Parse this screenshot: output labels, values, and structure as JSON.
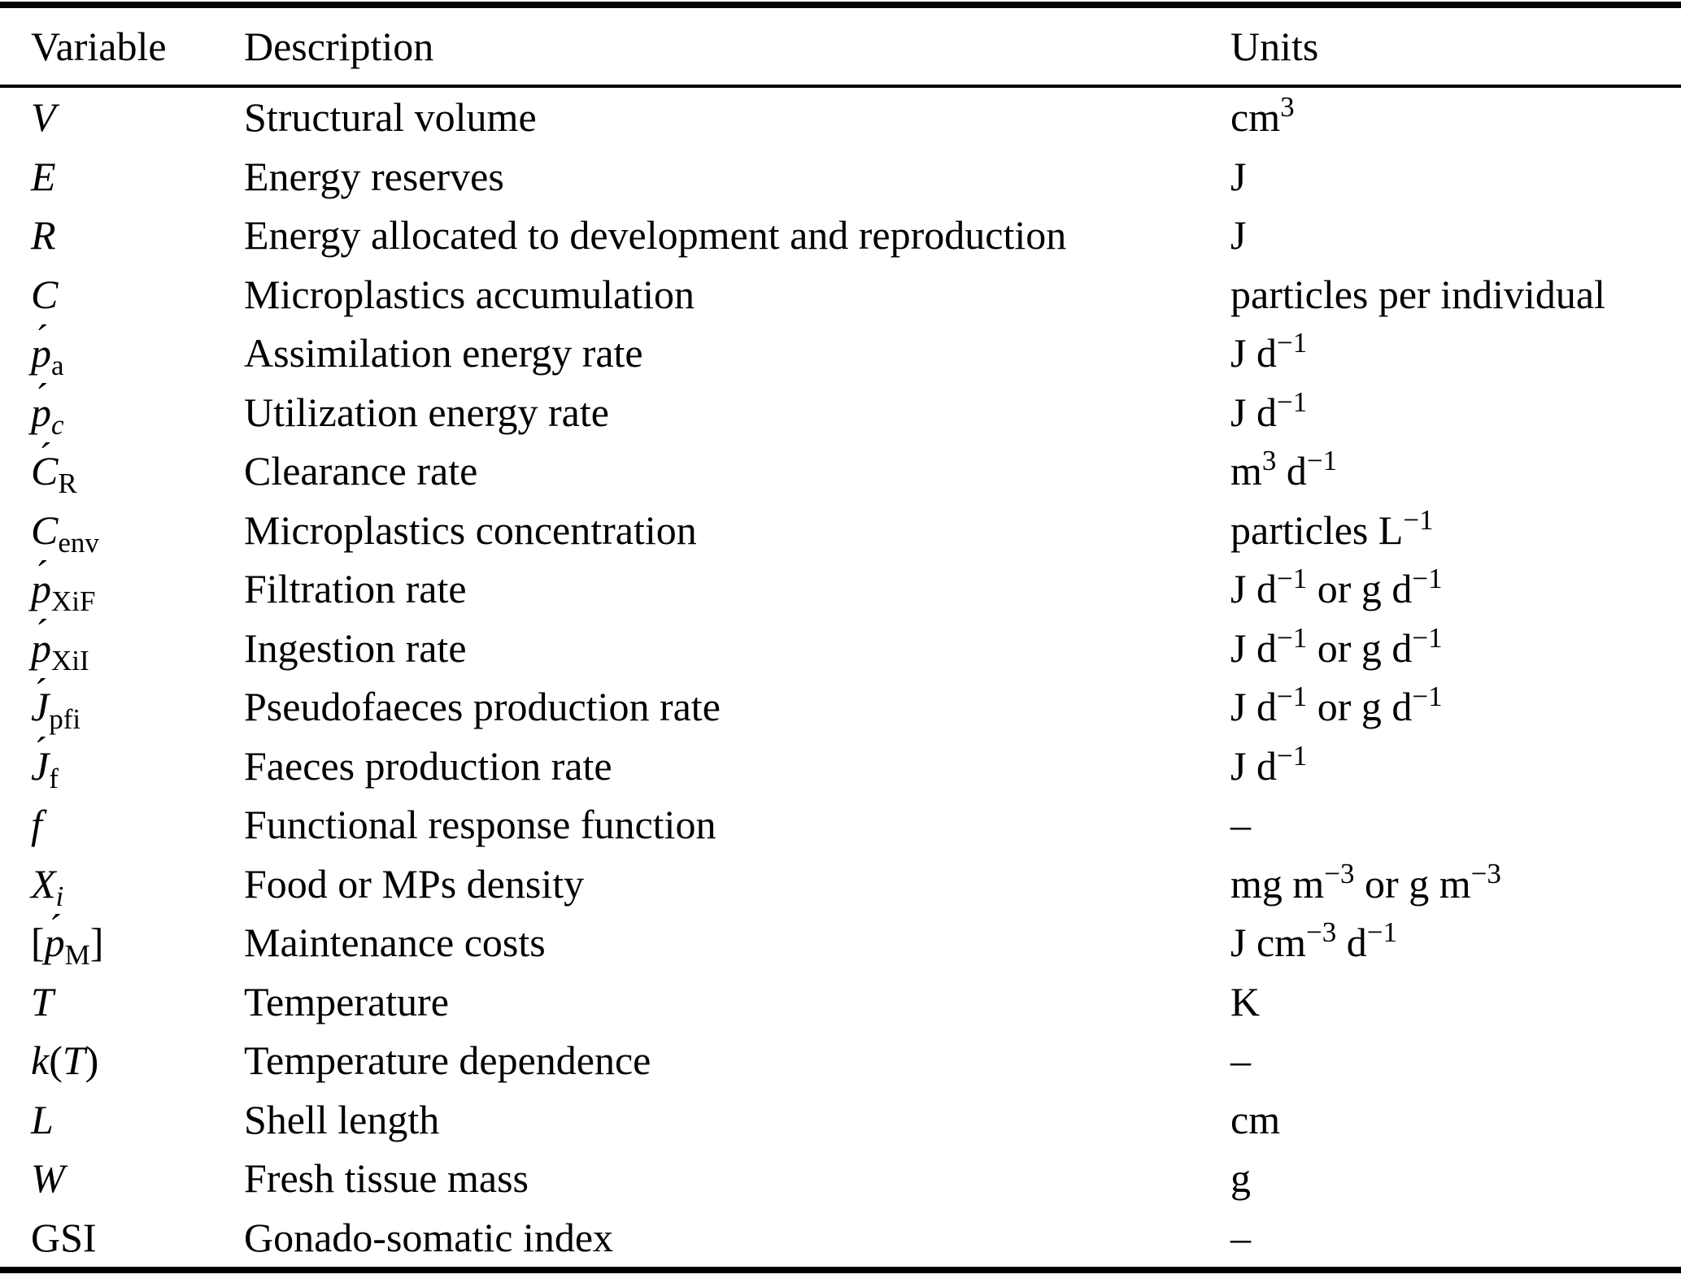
{
  "table": {
    "headers": {
      "variable": "Variable",
      "description": "Description",
      "units": "Units"
    },
    "rows": [
      {
        "variable": [
          {
            "t": "V",
            "i": true
          }
        ],
        "description": "Structural volume",
        "units": [
          {
            "t": "cm"
          },
          {
            "t": "3",
            "sup": true
          }
        ]
      },
      {
        "variable": [
          {
            "t": "E",
            "i": true
          }
        ],
        "description": "Energy reserves",
        "units": [
          {
            "t": "J"
          }
        ]
      },
      {
        "variable": [
          {
            "t": "R",
            "i": true
          }
        ],
        "description": "Energy allocated to development and reproduction",
        "units": [
          {
            "t": "J"
          }
        ]
      },
      {
        "variable": [
          {
            "t": "C",
            "i": true
          }
        ],
        "description": "Microplastics accumulation",
        "units": [
          {
            "t": "particles per individual"
          }
        ]
      },
      {
        "variable": [
          {
            "t": "p",
            "i": true,
            "ac": true
          },
          {
            "t": "a",
            "sub": true
          }
        ],
        "description": "Assimilation energy rate",
        "units": [
          {
            "t": "J d"
          },
          {
            "t": "−1",
            "sup": true
          }
        ]
      },
      {
        "variable": [
          {
            "t": "p",
            "i": true,
            "ac": true
          },
          {
            "t": "c",
            "sub": true,
            "i": true
          }
        ],
        "description": "Utilization energy rate",
        "units": [
          {
            "t": "J d"
          },
          {
            "t": "−1",
            "sup": true
          }
        ]
      },
      {
        "variable": [
          {
            "t": "C",
            "i": true,
            "ac": true
          },
          {
            "t": "R",
            "sub": true
          }
        ],
        "description": "Clearance rate",
        "units": [
          {
            "t": "m"
          },
          {
            "t": "3",
            "sup": true
          },
          {
            "t": " d"
          },
          {
            "t": "−1",
            "sup": true
          }
        ]
      },
      {
        "variable": [
          {
            "t": "C",
            "i": true
          },
          {
            "t": "env",
            "sub": true
          }
        ],
        "description": "Microplastics concentration",
        "units": [
          {
            "t": "particles L"
          },
          {
            "t": "−1",
            "sup": true
          }
        ]
      },
      {
        "variable": [
          {
            "t": "p",
            "i": true,
            "ac": true
          },
          {
            "t": "XiF",
            "sub": true
          }
        ],
        "description": "Filtration rate",
        "units": [
          {
            "t": "J d"
          },
          {
            "t": "−1",
            "sup": true
          },
          {
            "t": " or g d"
          },
          {
            "t": "−1",
            "sup": true
          }
        ]
      },
      {
        "variable": [
          {
            "t": "p",
            "i": true,
            "ac": true
          },
          {
            "t": "XiI",
            "sub": true
          }
        ],
        "description": "Ingestion rate",
        "units": [
          {
            "t": "J d"
          },
          {
            "t": "−1",
            "sup": true
          },
          {
            "t": " or g d"
          },
          {
            "t": "−1",
            "sup": true
          }
        ]
      },
      {
        "variable": [
          {
            "t": "J",
            "i": true,
            "ac": true
          },
          {
            "t": "pfi",
            "sub": true
          }
        ],
        "description": "Pseudofaeces production rate",
        "units": [
          {
            "t": "J d"
          },
          {
            "t": "−1",
            "sup": true
          },
          {
            "t": " or g d"
          },
          {
            "t": "−1",
            "sup": true
          }
        ]
      },
      {
        "variable": [
          {
            "t": "J",
            "i": true,
            "ac": true
          },
          {
            "t": "f",
            "sub": true
          }
        ],
        "description": "Faeces production rate",
        "units": [
          {
            "t": "J d"
          },
          {
            "t": "−1",
            "sup": true
          }
        ]
      },
      {
        "variable": [
          {
            "t": "f",
            "i": true
          }
        ],
        "description": "Functional response function",
        "units": [
          {
            "t": "–"
          }
        ]
      },
      {
        "variable": [
          {
            "t": "X",
            "i": true
          },
          {
            "t": "i",
            "sub": true,
            "i": true
          }
        ],
        "description": "Food or MPs density",
        "units": [
          {
            "t": "mg m"
          },
          {
            "t": "−3",
            "sup": true
          },
          {
            "t": " or g m"
          },
          {
            "t": "−3",
            "sup": true
          }
        ]
      },
      {
        "variable": [
          {
            "t": "["
          },
          {
            "t": "p",
            "i": true,
            "ac": true
          },
          {
            "t": "M",
            "sub": true
          },
          {
            "t": "]"
          }
        ],
        "description": "Maintenance costs",
        "units": [
          {
            "t": "J cm"
          },
          {
            "t": "−3",
            "sup": true
          },
          {
            "t": " d"
          },
          {
            "t": "−1",
            "sup": true
          }
        ]
      },
      {
        "variable": [
          {
            "t": "T",
            "i": true
          }
        ],
        "description": "Temperature",
        "units": [
          {
            "t": "K"
          }
        ]
      },
      {
        "variable": [
          {
            "t": "k",
            "i": true
          },
          {
            "t": "("
          },
          {
            "t": "T",
            "i": true
          },
          {
            "t": ")"
          }
        ],
        "description": "Temperature dependence",
        "units": [
          {
            "t": "–"
          }
        ]
      },
      {
        "variable": [
          {
            "t": "L",
            "i": true
          }
        ],
        "description": "Shell length",
        "units": [
          {
            "t": "cm"
          }
        ]
      },
      {
        "variable": [
          {
            "t": "W",
            "i": true
          }
        ],
        "description": "Fresh tissue mass",
        "units": [
          {
            "t": "g"
          }
        ]
      },
      {
        "variable": [
          {
            "t": "GSI"
          }
        ],
        "description": "Gonado-somatic index",
        "units": [
          {
            "t": "–"
          }
        ]
      }
    ]
  },
  "accent_glyph": "´",
  "colors": {
    "text": "#000000",
    "background": "#ffffff",
    "rule": "#000000"
  }
}
